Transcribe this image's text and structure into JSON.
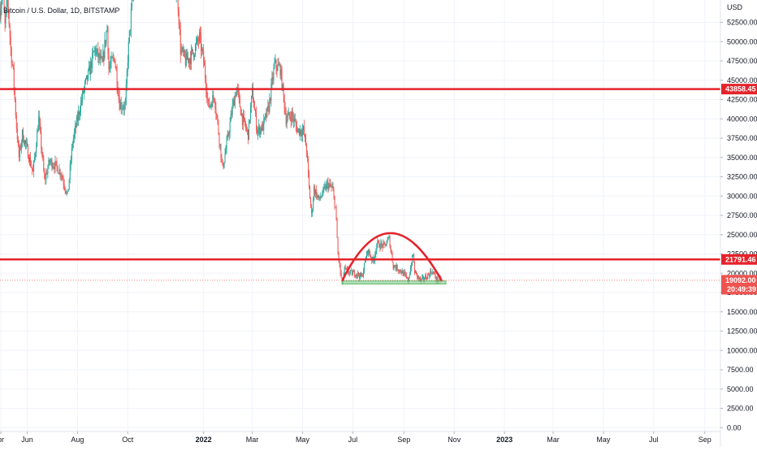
{
  "header": {
    "symbol_title": "Bitcoin / U.S. Dollar, 1D, BITSTAMP"
  },
  "colors": {
    "up": "#26a69a",
    "down": "#ef5350",
    "overlay_red": "#e5232b",
    "support_green": "#8fd19e",
    "last_price_tag": "#ef5350",
    "grid": "#f0f3fa",
    "axis_text": "#131722"
  },
  "chart_data": {
    "type": "candlestick",
    "title": "Bitcoin / U.S. Dollar, 1D, BITSTAMP",
    "y_unit": "USD",
    "ylim": [
      -500,
      55400
    ],
    "y_ticks": [
      0,
      2500,
      5000,
      7500,
      10000,
      12500,
      15000,
      17500,
      20000,
      22500,
      25000,
      27500,
      30000,
      32500,
      35000,
      37500,
      40000,
      42500,
      45000,
      47500,
      50000,
      52500
    ],
    "y_tick_labels": [
      "0.00",
      "2500.00",
      "5000.00",
      "7500.00",
      "10000.00",
      "12500.00",
      "15000.00",
      "17500.00",
      "20000.00",
      "22500.00",
      "25000.00",
      "27500.00",
      "30000.00",
      "32500.00",
      "35000.00",
      "37500.00",
      "40000.00",
      "42500.00",
      "45000.00",
      "47500.00",
      "50000.00",
      "52500.00"
    ],
    "x_axis": {
      "first_date": "2021-04-29",
      "last_date": "2023-09-20",
      "labels": [
        {
          "text": "pr",
          "date": "2021-04-30"
        },
        {
          "text": "Jun",
          "date": "2021-06-01"
        },
        {
          "text": "Aug",
          "date": "2021-08-01"
        },
        {
          "text": "Oct",
          "date": "2021-10-01"
        },
        {
          "text": "2022",
          "date": "2022-01-01"
        },
        {
          "text": "Mar",
          "date": "2022-03-01"
        },
        {
          "text": "May",
          "date": "2022-05-01"
        },
        {
          "text": "Jul",
          "date": "2022-07-01"
        },
        {
          "text": "Sep",
          "date": "2022-09-01"
        },
        {
          "text": "Nov",
          "date": "2022-11-01"
        },
        {
          "text": "2023",
          "date": "2023-01-01"
        },
        {
          "text": "Mar",
          "date": "2023-03-01"
        },
        {
          "text": "May",
          "date": "2023-05-01"
        },
        {
          "text": "Jul",
          "date": "2023-07-01"
        },
        {
          "text": "Sep",
          "date": "2023-09-01"
        }
      ]
    },
    "price_path": [
      {
        "date": "2021-04-29",
        "price": 54000
      },
      {
        "date": "2021-05-02",
        "price": 57000
      },
      {
        "date": "2021-05-05",
        "price": 52000
      },
      {
        "date": "2021-05-08",
        "price": 56000
      },
      {
        "date": "2021-05-12",
        "price": 49000
      },
      {
        "date": "2021-05-15",
        "price": 46000
      },
      {
        "date": "2021-05-19",
        "price": 39000
      },
      {
        "date": "2021-05-22",
        "price": 35000
      },
      {
        "date": "2021-05-26",
        "price": 38000
      },
      {
        "date": "2021-06-01",
        "price": 36000
      },
      {
        "date": "2021-06-08",
        "price": 33000
      },
      {
        "date": "2021-06-15",
        "price": 40000
      },
      {
        "date": "2021-06-22",
        "price": 32000
      },
      {
        "date": "2021-06-28",
        "price": 34500
      },
      {
        "date": "2021-07-05",
        "price": 34000
      },
      {
        "date": "2021-07-12",
        "price": 33000
      },
      {
        "date": "2021-07-20",
        "price": 30000
      },
      {
        "date": "2021-07-26",
        "price": 37000
      },
      {
        "date": "2021-08-01",
        "price": 40000
      },
      {
        "date": "2021-08-08",
        "price": 43500
      },
      {
        "date": "2021-08-15",
        "price": 46000
      },
      {
        "date": "2021-08-22",
        "price": 49000
      },
      {
        "date": "2021-08-31",
        "price": 47000
      },
      {
        "date": "2021-09-06",
        "price": 52000
      },
      {
        "date": "2021-09-08",
        "price": 46500
      },
      {
        "date": "2021-09-15",
        "price": 48000
      },
      {
        "date": "2021-09-21",
        "price": 42000
      },
      {
        "date": "2021-09-28",
        "price": 41500
      },
      {
        "date": "2021-10-01",
        "price": 48000
      },
      {
        "date": "2021-10-06",
        "price": 55000
      },
      {
        "date": "2021-10-15",
        "price": 61000
      },
      {
        "date": "2021-10-20",
        "price": 65000
      },
      {
        "date": "2021-11-10",
        "price": 67000
      },
      {
        "date": "2021-11-20",
        "price": 58000
      },
      {
        "date": "2021-11-30",
        "price": 57000
      },
      {
        "date": "2021-12-04",
        "price": 49000
      },
      {
        "date": "2021-12-10",
        "price": 47500
      },
      {
        "date": "2021-12-16",
        "price": 48000
      },
      {
        "date": "2021-12-21",
        "price": 49000
      },
      {
        "date": "2021-12-27",
        "price": 50500
      },
      {
        "date": "2022-01-01",
        "price": 47500
      },
      {
        "date": "2022-01-07",
        "price": 41500
      },
      {
        "date": "2022-01-14",
        "price": 43000
      },
      {
        "date": "2022-01-21",
        "price": 36500
      },
      {
        "date": "2022-01-24",
        "price": 33500
      },
      {
        "date": "2022-01-31",
        "price": 38000
      },
      {
        "date": "2022-02-05",
        "price": 41500
      },
      {
        "date": "2022-02-10",
        "price": 44000
      },
      {
        "date": "2022-02-17",
        "price": 40000
      },
      {
        "date": "2022-02-24",
        "price": 38000
      },
      {
        "date": "2022-03-01",
        "price": 43500
      },
      {
        "date": "2022-03-07",
        "price": 38500
      },
      {
        "date": "2022-03-14",
        "price": 39000
      },
      {
        "date": "2022-03-21",
        "price": 41500
      },
      {
        "date": "2022-03-28",
        "price": 47000
      },
      {
        "date": "2022-04-04",
        "price": 46500
      },
      {
        "date": "2022-04-11",
        "price": 40000
      },
      {
        "date": "2022-04-18",
        "price": 40500
      },
      {
        "date": "2022-04-25",
        "price": 38500
      },
      {
        "date": "2022-05-02",
        "price": 38500
      },
      {
        "date": "2022-05-06",
        "price": 36000
      },
      {
        "date": "2022-05-09",
        "price": 31000
      },
      {
        "date": "2022-05-12",
        "price": 27500
      },
      {
        "date": "2022-05-15",
        "price": 31000
      },
      {
        "date": "2022-05-21",
        "price": 29500
      },
      {
        "date": "2022-05-31",
        "price": 31500
      },
      {
        "date": "2022-06-06",
        "price": 31000
      },
      {
        "date": "2022-06-10",
        "price": 28500
      },
      {
        "date": "2022-06-13",
        "price": 22500
      },
      {
        "date": "2022-06-18",
        "price": 18500
      },
      {
        "date": "2022-06-21",
        "price": 20500
      },
      {
        "date": "2022-06-28",
        "price": 20000
      },
      {
        "date": "2022-07-05",
        "price": 20000
      },
      {
        "date": "2022-07-12",
        "price": 19500
      },
      {
        "date": "2022-07-19",
        "price": 23000
      },
      {
        "date": "2022-07-26",
        "price": 21500
      },
      {
        "date": "2022-07-30",
        "price": 23800
      },
      {
        "date": "2022-08-08",
        "price": 23500
      },
      {
        "date": "2022-08-14",
        "price": 24500
      },
      {
        "date": "2022-08-19",
        "price": 21000
      },
      {
        "date": "2022-08-26",
        "price": 20500
      },
      {
        "date": "2022-08-31",
        "price": 20000
      },
      {
        "date": "2022-09-06",
        "price": 19000
      },
      {
        "date": "2022-09-12",
        "price": 22400
      },
      {
        "date": "2022-09-14",
        "price": 20200
      },
      {
        "date": "2022-09-21",
        "price": 19000
      },
      {
        "date": "2022-09-28",
        "price": 19500
      },
      {
        "date": "2022-10-05",
        "price": 20300
      },
      {
        "date": "2022-10-11",
        "price": 19100
      },
      {
        "date": "2022-10-16",
        "price": 19092
      }
    ],
    "horizontal_lines": [
      {
        "price": 43858.45,
        "label": "43858.45",
        "color": "#e5232b"
      },
      {
        "price": 21791.46,
        "label": "21791.46",
        "color": "#e5232b"
      }
    ],
    "support_band": {
      "start": "2022-06-18",
      "end": "2022-10-22",
      "low": 18600,
      "high": 19000
    },
    "arc": {
      "start": "2022-06-18",
      "end": "2022-10-17",
      "base": 19000,
      "peak_date": "2022-08-14",
      "peak": 25200
    },
    "last_price": {
      "price": 19092.0,
      "label": "19092.00",
      "countdown": "20:49:39"
    }
  }
}
